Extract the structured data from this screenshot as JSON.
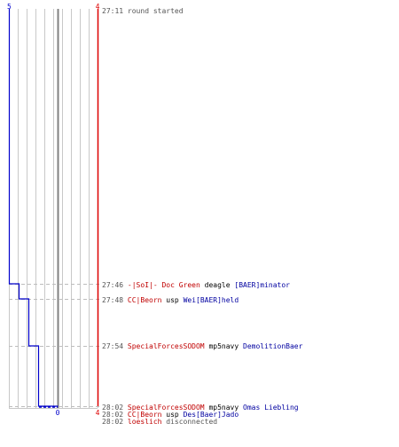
{
  "colors": {
    "team_left": "#0000cc",
    "team_right": "#dd0000",
    "grid": "#c8c8c8",
    "center": "#808080",
    "dash": "#bdbdbd",
    "text_time": "#555555",
    "text_red": "#c00000",
    "text_blue": "#0000a0"
  },
  "chart_data": {
    "type": "line",
    "top_labels": {
      "left": "5",
      "right": "4"
    },
    "bottom_labels": {
      "center": "0",
      "right": "4"
    },
    "grid": true,
    "series": [
      {
        "team": "blue",
        "x": [
          5,
          5,
          4,
          4,
          3,
          3,
          2,
          2,
          0
        ],
        "y": [
          "27:11",
          "27:46",
          "27:46",
          "27:48",
          "27:48",
          "27:54",
          "27:54",
          "28:02",
          "28:02"
        ]
      },
      {
        "team": "red",
        "x": [
          4,
          4
        ],
        "y": [
          "27:11",
          "28:02"
        ]
      }
    ],
    "events": [
      {
        "time": "27:11",
        "parts": [
          {
            "text": "round started",
            "style": "gry"
          }
        ],
        "marker": false
      },
      {
        "time": "27:46",
        "parts": [
          {
            "text": "-|SoI|- Doc Green",
            "style": "red"
          },
          {
            "text": "deagle",
            "style": "blk"
          },
          {
            "text": "[BAER]minator",
            "style": "blue"
          }
        ],
        "marker": true
      },
      {
        "time": "27:48",
        "parts": [
          {
            "text": "CC|Beorn",
            "style": "red"
          },
          {
            "text": "usp",
            "style": "blk"
          },
          {
            "text": "Wei[BAER]held",
            "style": "blue"
          }
        ],
        "marker": true
      },
      {
        "time": "27:54",
        "parts": [
          {
            "text": "SpecialForcesSODOM",
            "style": "red"
          },
          {
            "text": "mp5navy",
            "style": "blk"
          },
          {
            "text": "DemolitionBaer",
            "style": "blue"
          }
        ],
        "marker": true
      },
      {
        "time": "28:02",
        "parts": [
          {
            "text": "SpecialForcesSODOM",
            "style": "red"
          },
          {
            "text": "mp5navy",
            "style": "blk"
          },
          {
            "text": "Omas Liebling",
            "style": "blue"
          }
        ],
        "marker": true
      },
      {
        "time": "28:02",
        "parts": [
          {
            "text": "CC|Beorn",
            "style": "red"
          },
          {
            "text": "usp",
            "style": "blk"
          },
          {
            "text": "Des[Baer]Jado",
            "style": "blue"
          }
        ],
        "marker": false
      },
      {
        "time": "28:02",
        "parts": [
          {
            "text": "loeslich",
            "style": "red"
          },
          {
            "text": "disconnected",
            "style": "gry"
          }
        ],
        "marker": false
      }
    ]
  }
}
